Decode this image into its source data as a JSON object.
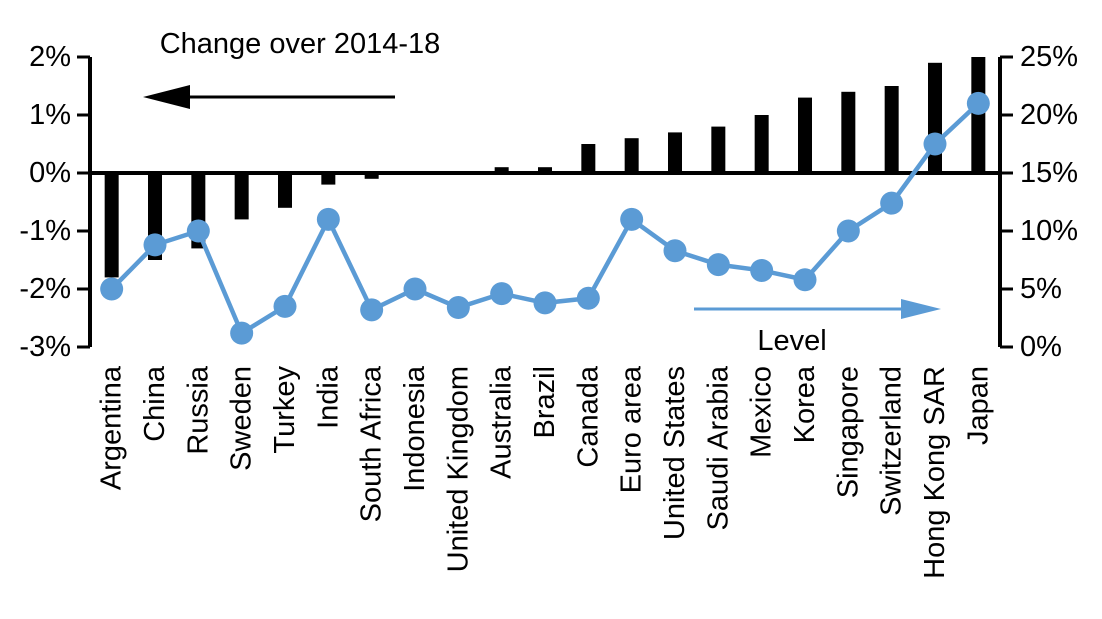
{
  "chart_data": {
    "type": "combo-bar-line-dual-axis",
    "title": "",
    "categories": [
      "Argentina",
      "China",
      "Russia",
      "Sweden",
      "Turkey",
      "India",
      "South Africa",
      "Indonesia",
      "United Kingdom",
      "Australia",
      "Brazil",
      "Canada",
      "Euro area",
      "United States",
      "Saudi Arabia",
      "Mexico",
      "Korea",
      "Singapore",
      "Switzerland",
      "Hong Kong SAR",
      "Japan"
    ],
    "series": [
      {
        "name": "Change over 2014-18",
        "type": "bar",
        "axis": "left",
        "color": "#000000",
        "values": [
          -1.8,
          -1.5,
          -1.3,
          -0.8,
          -0.6,
          -0.2,
          -0.1,
          0,
          0,
          0.1,
          0.1,
          0.5,
          0.6,
          0.7,
          0.8,
          1.0,
          1.3,
          1.4,
          1.5,
          1.9,
          2.0
        ]
      },
      {
        "name": "Level",
        "type": "line",
        "axis": "right",
        "color": "#5b9bd5",
        "values": [
          5.0,
          8.8,
          10.0,
          1.2,
          3.5,
          11.0,
          3.2,
          5.0,
          3.4,
          4.6,
          3.8,
          4.2,
          11.0,
          8.3,
          7.1,
          6.6,
          5.8,
          10.0,
          12.4,
          17.5,
          21.0
        ]
      }
    ],
    "left_axis": {
      "min": -3,
      "max": 2,
      "ticks": [
        {
          "label": "2%",
          "value": 2
        },
        {
          "label": "1%",
          "value": 1
        },
        {
          "label": "0%",
          "value": 0
        },
        {
          "label": "-1%",
          "value": -1
        },
        {
          "label": "-2%",
          "value": -2
        },
        {
          "label": "-3%",
          "value": -3
        }
      ]
    },
    "right_axis": {
      "min": 0,
      "max": 25,
      "ticks": [
        {
          "label": "25%",
          "value": 25
        },
        {
          "label": "20%",
          "value": 20
        },
        {
          "label": "15%",
          "value": 15
        },
        {
          "label": "10%",
          "value": 10
        },
        {
          "label": "5%",
          "value": 5
        },
        {
          "label": "0%",
          "value": 0
        }
      ]
    },
    "annotations": {
      "left": {
        "text": "Change over 2014-18",
        "arrow": "left",
        "color": "#000000"
      },
      "right": {
        "text": "Level",
        "arrow": "right",
        "color": "#5b9bd5"
      }
    },
    "legend": "none",
    "grid": "zero-line-only"
  }
}
